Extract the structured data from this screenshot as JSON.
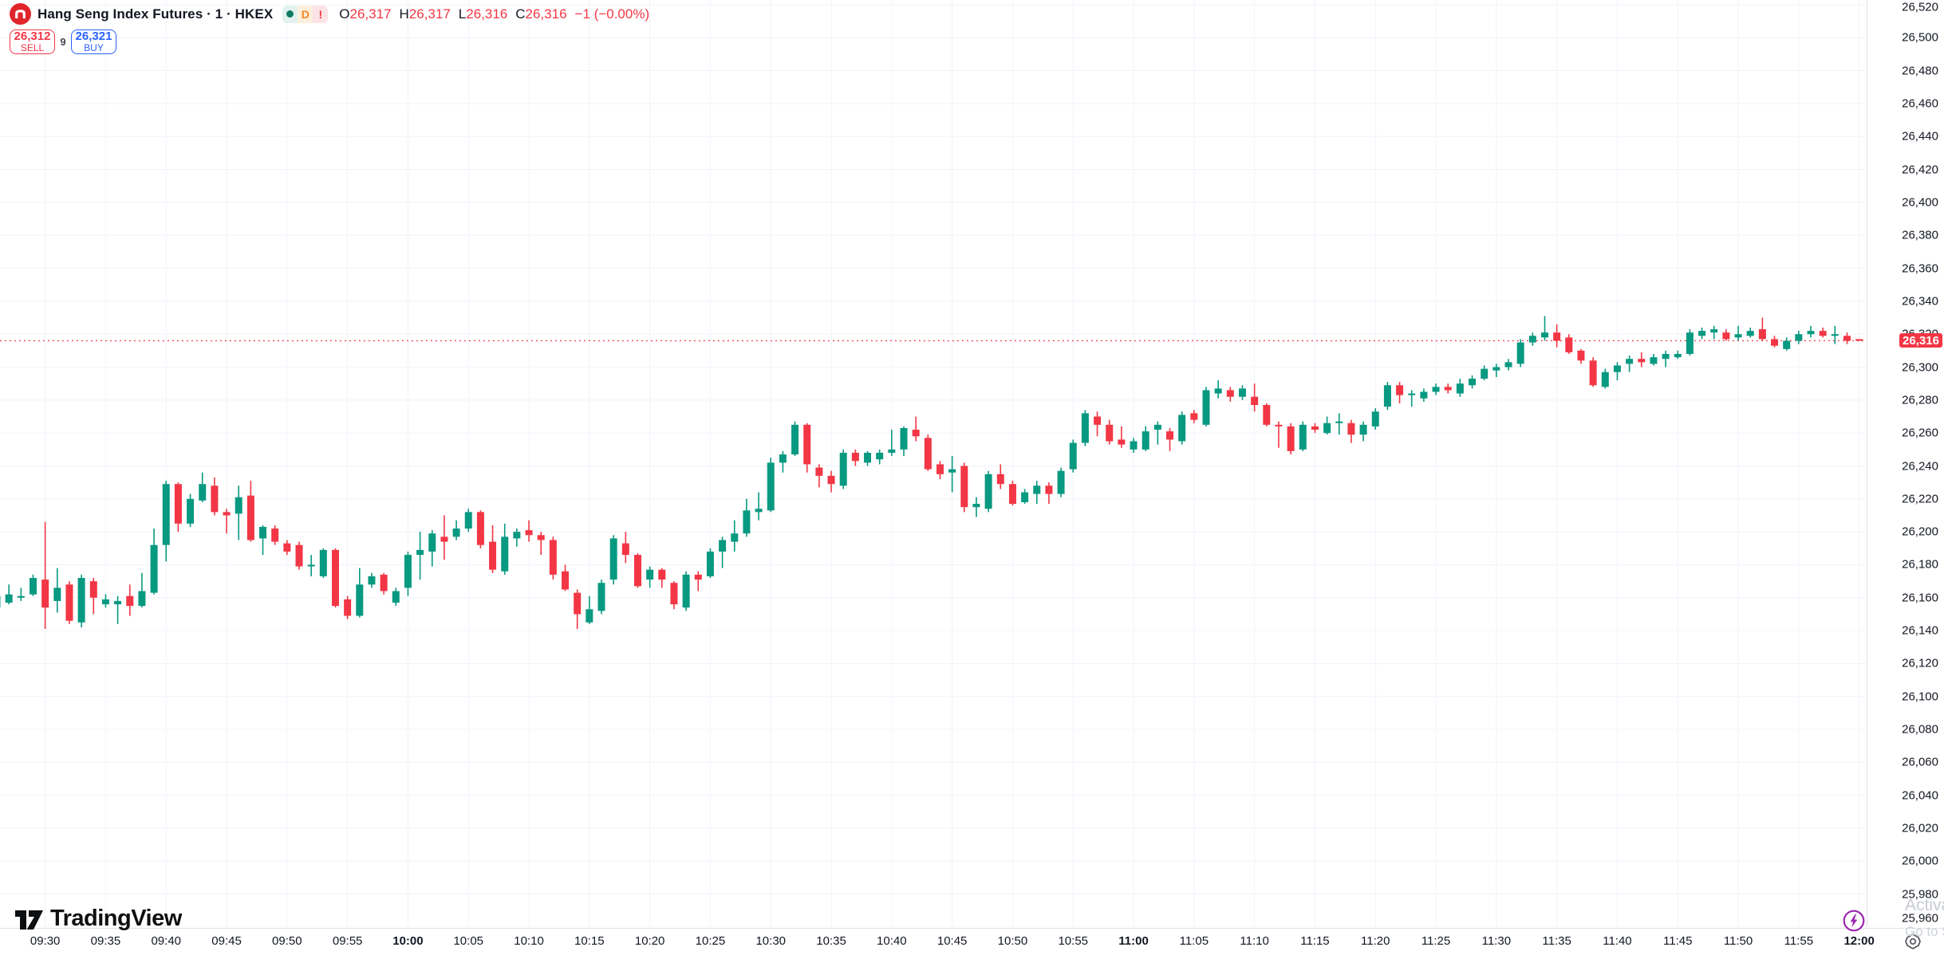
{
  "header": {
    "title": "Hang Seng Index Futures · 1 · HKEX",
    "badges": {
      "delayed": "D",
      "alert": "!"
    },
    "ohlc": {
      "open_label": "O",
      "open": "26,317",
      "high_label": "H",
      "high": "26,317",
      "low_label": "L",
      "low": "26,316",
      "close_label": "C",
      "close": "26,316",
      "change": "−1 (−0.00%)"
    },
    "order_panel": {
      "sell_price": "26,312",
      "sell_label": "SELL",
      "spread": "9",
      "buy_price": "26,321",
      "buy_label": "BUY"
    }
  },
  "price_axis": {
    "tick_values": [
      26520,
      26500,
      26480,
      26460,
      26440,
      26420,
      26400,
      26380,
      26360,
      26340,
      26320,
      26300,
      26280,
      26260,
      26240,
      26220,
      26200,
      26180,
      26160,
      26140,
      26120,
      26100,
      26080,
      26060,
      26040,
      26020,
      26000,
      25980,
      25960
    ],
    "last_price_label": "26,316"
  },
  "time_axis": {
    "ticks": [
      {
        "label": "09:30",
        "bold": false
      },
      {
        "label": "09:35",
        "bold": false
      },
      {
        "label": "09:40",
        "bold": false
      },
      {
        "label": "09:45",
        "bold": false
      },
      {
        "label": "09:50",
        "bold": false
      },
      {
        "label": "09:55",
        "bold": false
      },
      {
        "label": "10:00",
        "bold": true
      },
      {
        "label": "10:05",
        "bold": false
      },
      {
        "label": "10:10",
        "bold": false
      },
      {
        "label": "10:15",
        "bold": false
      },
      {
        "label": "10:20",
        "bold": false
      },
      {
        "label": "10:25",
        "bold": false
      },
      {
        "label": "10:30",
        "bold": false
      },
      {
        "label": "10:35",
        "bold": false
      },
      {
        "label": "10:40",
        "bold": false
      },
      {
        "label": "10:45",
        "bold": false
      },
      {
        "label": "10:50",
        "bold": false
      },
      {
        "label": "10:55",
        "bold": false
      },
      {
        "label": "11:00",
        "bold": true
      },
      {
        "label": "11:05",
        "bold": false
      },
      {
        "label": "11:10",
        "bold": false
      },
      {
        "label": "11:15",
        "bold": false
      },
      {
        "label": "11:20",
        "bold": false
      },
      {
        "label": "11:25",
        "bold": false
      },
      {
        "label": "11:30",
        "bold": false
      },
      {
        "label": "11:35",
        "bold": false
      },
      {
        "label": "11:40",
        "bold": false
      },
      {
        "label": "11:45",
        "bold": false
      },
      {
        "label": "11:50",
        "bold": false
      },
      {
        "label": "11:55",
        "bold": false
      },
      {
        "label": "12:00",
        "bold": true
      }
    ]
  },
  "chart_data": {
    "type": "candlestick",
    "title": "Hang Seng Index Futures, 1 minute, HKEX",
    "start_time": "09:26",
    "end_time": "12:00",
    "interval_minutes": 1,
    "up_color": "#089981",
    "down_color": "#F23645",
    "grid": true,
    "price_line": {
      "value": 26316,
      "color": "#F23645",
      "style": "dotted"
    },
    "y_axis": {
      "top_value": 26520,
      "bottom_value": 25960,
      "tick_step": 20
    },
    "ohlc_note": "candles are [open,high,low,close], one per minute from start_time",
    "candles": [
      [
        26154,
        26162,
        26152,
        26161
      ],
      [
        26157,
        26168,
        26156,
        26162
      ],
      [
        26160,
        26166,
        26158,
        26161
      ],
      [
        26162,
        26174,
        26161,
        26172
      ],
      [
        26171,
        26206,
        26141,
        26154
      ],
      [
        26158,
        26178,
        26151,
        26166
      ],
      [
        26168,
        26170,
        26144,
        26146
      ],
      [
        26145,
        26174,
        26142,
        26172
      ],
      [
        26170,
        26172,
        26150,
        26160
      ],
      [
        26156,
        26162,
        26154,
        26159
      ],
      [
        26156,
        26161,
        26144,
        26158
      ],
      [
        26161,
        26168,
        26149,
        26155
      ],
      [
        26155,
        26175,
        26154,
        26164
      ],
      [
        26163,
        26202,
        26162,
        26192
      ],
      [
        26192,
        26231,
        26182,
        26229
      ],
      [
        26229,
        26230,
        26200,
        26205
      ],
      [
        26205,
        26223,
        26203,
        26220
      ],
      [
        26219,
        26236,
        26218,
        26229
      ],
      [
        26228,
        26233,
        26210,
        26212
      ],
      [
        26212,
        26214,
        26199,
        26210
      ],
      [
        26211,
        26228,
        26195,
        26221
      ],
      [
        26222,
        26231,
        26194,
        26195
      ],
      [
        26196,
        26204,
        26186,
        26203
      ],
      [
        26202,
        26204,
        26192,
        26194
      ],
      [
        26193,
        26195,
        26186,
        26188
      ],
      [
        26192,
        26194,
        26177,
        26179
      ],
      [
        26179,
        26186,
        26173,
        26180
      ],
      [
        26173,
        26190,
        26172,
        26189
      ],
      [
        26189,
        26190,
        26154,
        26155
      ],
      [
        26159,
        26161,
        26147,
        26149
      ],
      [
        26149,
        26178,
        26148,
        26168
      ],
      [
        26168,
        26175,
        26166,
        26173
      ],
      [
        26174,
        26175,
        26162,
        26164
      ],
      [
        26157,
        26166,
        26155,
        26164
      ],
      [
        26166,
        26188,
        26161,
        26186
      ],
      [
        26186,
        26200,
        26171,
        26189
      ],
      [
        26188,
        26201,
        26179,
        26199
      ],
      [
        26197,
        26210,
        26183,
        26194
      ],
      [
        26197,
        26207,
        26195,
        26202
      ],
      [
        26202,
        26214,
        26200,
        26212
      ],
      [
        26212,
        26213,
        26190,
        26192
      ],
      [
        26194,
        26204,
        26175,
        26177
      ],
      [
        26176,
        26205,
        26174,
        26197
      ],
      [
        26196,
        26202,
        26191,
        26200
      ],
      [
        26201,
        26207,
        26194,
        26198
      ],
      [
        26198,
        26200,
        26186,
        26195
      ],
      [
        26195,
        26197,
        26171,
        26174
      ],
      [
        26176,
        26180,
        26164,
        26165
      ],
      [
        26163,
        26165,
        26141,
        26150
      ],
      [
        26145,
        26161,
        26144,
        26153
      ],
      [
        26152,
        26171,
        26150,
        26169
      ],
      [
        26171,
        26198,
        26168,
        26196
      ],
      [
        26193,
        26200,
        26181,
        26186
      ],
      [
        26186,
        26187,
        26166,
        26167
      ],
      [
        26171,
        26179,
        26166,
        26177
      ],
      [
        26177,
        26178,
        26166,
        26171
      ],
      [
        26169,
        26170,
        26153,
        26156
      ],
      [
        26154,
        26176,
        26152,
        26174
      ],
      [
        26174,
        26176,
        26164,
        26171
      ],
      [
        26173,
        26190,
        26172,
        26188
      ],
      [
        26188,
        26197,
        26178,
        26195
      ],
      [
        26194,
        26207,
        26188,
        26199
      ],
      [
        26199,
        26220,
        26197,
        26213
      ],
      [
        26212,
        26224,
        26207,
        26214
      ],
      [
        26213,
        26245,
        26212,
        26242
      ],
      [
        26242,
        26249,
        26236,
        26247
      ],
      [
        26247,
        26267,
        26246,
        26265
      ],
      [
        26265,
        26266,
        26236,
        26241
      ],
      [
        26239,
        26241,
        26227,
        26234
      ],
      [
        26234,
        26237,
        26224,
        26229
      ],
      [
        26228,
        26250,
        26226,
        26248
      ],
      [
        26248,
        26250,
        26240,
        26243
      ],
      [
        26242,
        26249,
        26240,
        26248
      ],
      [
        26244,
        26250,
        26241,
        26248
      ],
      [
        26248,
        26262,
        26246,
        26250
      ],
      [
        26250,
        26264,
        26246,
        26263
      ],
      [
        26262,
        26270,
        26255,
        26258
      ],
      [
        26257,
        26259,
        26237,
        26238
      ],
      [
        26241,
        26243,
        26232,
        26235
      ],
      [
        26236,
        26246,
        26224,
        26238
      ],
      [
        26240,
        26242,
        26212,
        26215
      ],
      [
        26215,
        26221,
        26209,
        26217
      ],
      [
        26214,
        26237,
        26212,
        26235
      ],
      [
        26235,
        26241,
        26226,
        26229
      ],
      [
        26229,
        26231,
        26216,
        26217
      ],
      [
        26218,
        26226,
        26217,
        26224
      ],
      [
        26223,
        26231,
        26217,
        26228
      ],
      [
        26228,
        26230,
        26217,
        26223
      ],
      [
        26223,
        26239,
        26221,
        26237
      ],
      [
        26238,
        26256,
        26236,
        26254
      ],
      [
        26254,
        26274,
        26252,
        26272
      ],
      [
        26270,
        26273,
        26258,
        26265
      ],
      [
        26265,
        26268,
        26253,
        26255
      ],
      [
        26256,
        26264,
        26251,
        26253
      ],
      [
        26250,
        26257,
        26248,
        26255
      ],
      [
        26250,
        26264,
        26249,
        26261
      ],
      [
        26262,
        26267,
        26253,
        26265
      ],
      [
        26261,
        26263,
        26249,
        26256
      ],
      [
        26255,
        26273,
        26253,
        26271
      ],
      [
        26272,
        26274,
        26266,
        26268
      ],
      [
        26265,
        26288,
        26264,
        26286
      ],
      [
        26284,
        26292,
        26281,
        26287
      ],
      [
        26286,
        26288,
        26279,
        26282
      ],
      [
        26282,
        26289,
        26280,
        26287
      ],
      [
        26282,
        26290,
        26273,
        26277
      ],
      [
        26277,
        26278,
        26264,
        26265
      ],
      [
        26265,
        26267,
        26251,
        26264
      ],
      [
        26264,
        26266,
        26247,
        26249
      ],
      [
        26250,
        26267,
        26249,
        26265
      ],
      [
        26264,
        26266,
        26260,
        26262
      ],
      [
        26260,
        26270,
        26259,
        26266
      ],
      [
        26266,
        26272,
        26259,
        26267
      ],
      [
        26266,
        26268,
        26254,
        26259
      ],
      [
        26259,
        26267,
        26255,
        26265
      ],
      [
        26264,
        26275,
        26262,
        26273
      ],
      [
        26276,
        26291,
        26274,
        26289
      ],
      [
        26289,
        26291,
        26278,
        26283
      ],
      [
        26283,
        26286,
        26276,
        26284
      ],
      [
        26281,
        26287,
        26279,
        26285
      ],
      [
        26285,
        26290,
        26283,
        26288
      ],
      [
        26288,
        26290,
        26284,
        26286
      ],
      [
        26284,
        26293,
        26282,
        26290
      ],
      [
        26289,
        26295,
        26287,
        26293
      ],
      [
        26293,
        26301,
        26292,
        26299
      ],
      [
        26298,
        26302,
        26294,
        26300
      ],
      [
        26300,
        26305,
        26298,
        26303
      ],
      [
        26302,
        26317,
        26300,
        26315
      ],
      [
        26315,
        26321,
        26313,
        26319
      ],
      [
        26318,
        26331,
        26316,
        26321
      ],
      [
        26321,
        26326,
        26312,
        26316
      ],
      [
        26318,
        26320,
        26308,
        26309
      ],
      [
        26310,
        26311,
        26302,
        26304
      ],
      [
        26304,
        26306,
        26288,
        26289
      ],
      [
        26288,
        26299,
        26287,
        26297
      ],
      [
        26297,
        26303,
        26292,
        26301
      ],
      [
        26302,
        26307,
        26297,
        26305
      ],
      [
        26305,
        26309,
        26300,
        26303
      ],
      [
        26302,
        26308,
        26301,
        26306
      ],
      [
        26305,
        26310,
        26300,
        26308
      ],
      [
        26306,
        26310,
        26305,
        26308
      ],
      [
        26308,
        26323,
        26307,
        26321
      ],
      [
        26319,
        26324,
        26317,
        26322
      ],
      [
        26321,
        26325,
        26317,
        26323
      ],
      [
        26321,
        26323,
        26316,
        26317
      ],
      [
        26318,
        26325,
        26316,
        26320
      ],
      [
        26319,
        26324,
        26318,
        26322
      ],
      [
        26323,
        26330,
        26316,
        26317
      ],
      [
        26317,
        26319,
        26312,
        26313
      ],
      [
        26311,
        26318,
        26310,
        26316
      ],
      [
        26316,
        26322,
        26314,
        26320
      ],
      [
        26320,
        26325,
        26318,
        26322
      ],
      [
        26322,
        26324,
        26318,
        26319
      ],
      [
        26319,
        26325,
        26314,
        26320
      ],
      [
        26319,
        26321,
        26314,
        26316
      ],
      [
        26317,
        26317,
        26316,
        26316
      ]
    ]
  },
  "footer": {
    "logo_text": "TradingView",
    "watermark_line1": "Activa",
    "watermark_line2": "Go to S"
  },
  "colors": {
    "up": "#089981",
    "down": "#F23645",
    "buy_accent": "#2962FF",
    "sell_accent": "#F23645",
    "grid": "#f0f3fa",
    "axis_text": "#131722",
    "lightning": "#9C27B0"
  }
}
